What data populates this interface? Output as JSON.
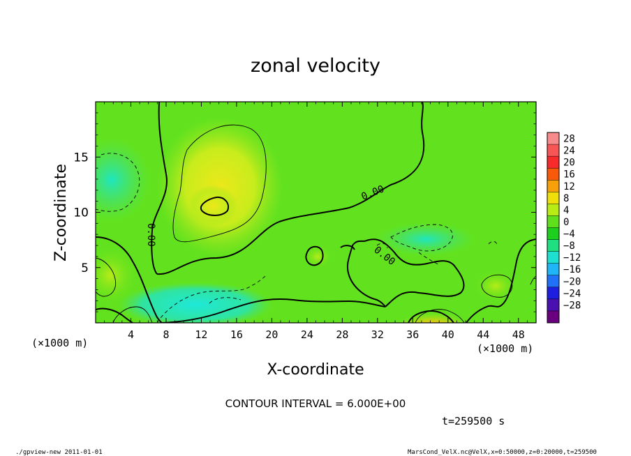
{
  "chart_data": {
    "type": "heatmap",
    "title": "zonal velocity",
    "xlabel": "X-coordinate",
    "ylabel": "Z-coordinate",
    "xunit": "(×1000 m)",
    "yunit": "(×1000 m)",
    "xlim": [
      0,
      50
    ],
    "ylim": [
      0,
      20
    ],
    "xticks": [
      4,
      8,
      12,
      16,
      20,
      24,
      28,
      32,
      36,
      40,
      44,
      48
    ],
    "yticks": [
      5,
      10,
      15
    ],
    "contour_interval_text": "CONTOUR INTERVAL = 6.000E+00",
    "time_text": "t=259500 s",
    "contour_label": "0.00",
    "colorbar": {
      "levels": [
        "28",
        "24",
        "20",
        "16",
        "12",
        "8",
        "4",
        "0",
        "-4",
        "-8",
        "-12",
        "-16",
        "-20",
        "-24",
        "-28"
      ],
      "colors": [
        "#f78a8a",
        "#f85555",
        "#f82a2a",
        "#f85a0a",
        "#f8a00a",
        "#f0e00a",
        "#b8ec14",
        "#60e01c",
        "#1ed01e",
        "#1ee080",
        "#1ee0d0",
        "#20b4f8",
        "#2070f8",
        "#1e1ee0",
        "#4a10b0",
        "#6a0080"
      ]
    }
  },
  "footer": {
    "left": "./gpview-new  2011-01-01",
    "right": "MarsCond_VelX.nc@VelX,x=0:50000,z=0:20000,t=259500"
  }
}
